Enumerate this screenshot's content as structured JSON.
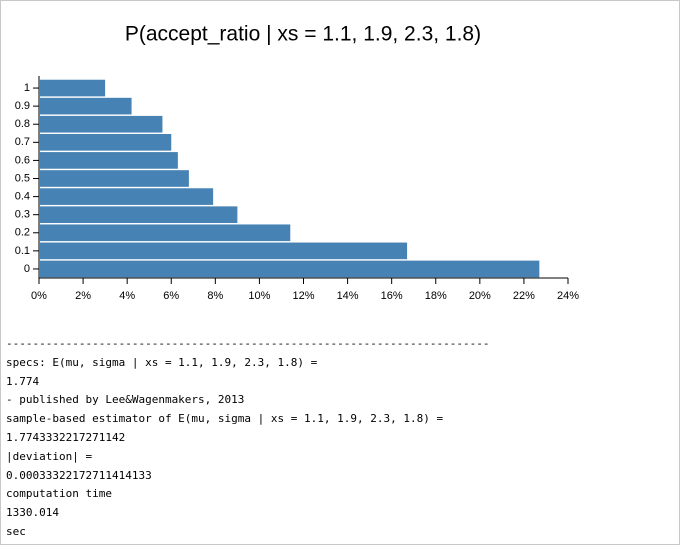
{
  "chart_data": {
    "type": "barh",
    "title": "P(accept_ratio | xs = 1.1, 1.9, 2.3, 1.8)",
    "categories": [
      "0",
      "0.1",
      "0.2",
      "0.3",
      "0.4",
      "0.5",
      "0.6",
      "0.7",
      "0.8",
      "0.9",
      "1"
    ],
    "values": [
      22.7,
      16.7,
      11.4,
      9.0,
      7.9,
      6.8,
      6.3,
      6.0,
      5.6,
      4.2,
      3.0
    ],
    "color": "#4682b4",
    "xlim": [
      0,
      24
    ],
    "xticks": [
      {
        "value": 0,
        "label": "0%"
      },
      {
        "value": 2,
        "label": "2%"
      },
      {
        "value": 4,
        "label": "4%"
      },
      {
        "value": 6,
        "label": "6%"
      },
      {
        "value": 8,
        "label": "8%"
      },
      {
        "value": 10,
        "label": "10%"
      },
      {
        "value": 12,
        "label": "12%"
      },
      {
        "value": 14,
        "label": "14%"
      },
      {
        "value": 16,
        "label": "16%"
      },
      {
        "value": 18,
        "label": "18%"
      },
      {
        "value": 20,
        "label": "20%"
      },
      {
        "value": 22,
        "label": "22%"
      },
      {
        "value": 24,
        "label": "24%"
      }
    ]
  },
  "output": [
    "-------------------------------------------------------------------------",
    "specs: E(mu, sigma | xs = 1.1, 1.9, 2.3, 1.8) =",
    "1.774",
    "- published by Lee&Wagenmakers, 2013",
    "sample-based estimator of E(mu, sigma | xs = 1.1, 1.9, 2.3, 1.8) =",
    "1.7743332217271142",
    "|deviation| =",
    "0.00033322172711414133",
    "computation time",
    "1330.014",
    "sec"
  ]
}
